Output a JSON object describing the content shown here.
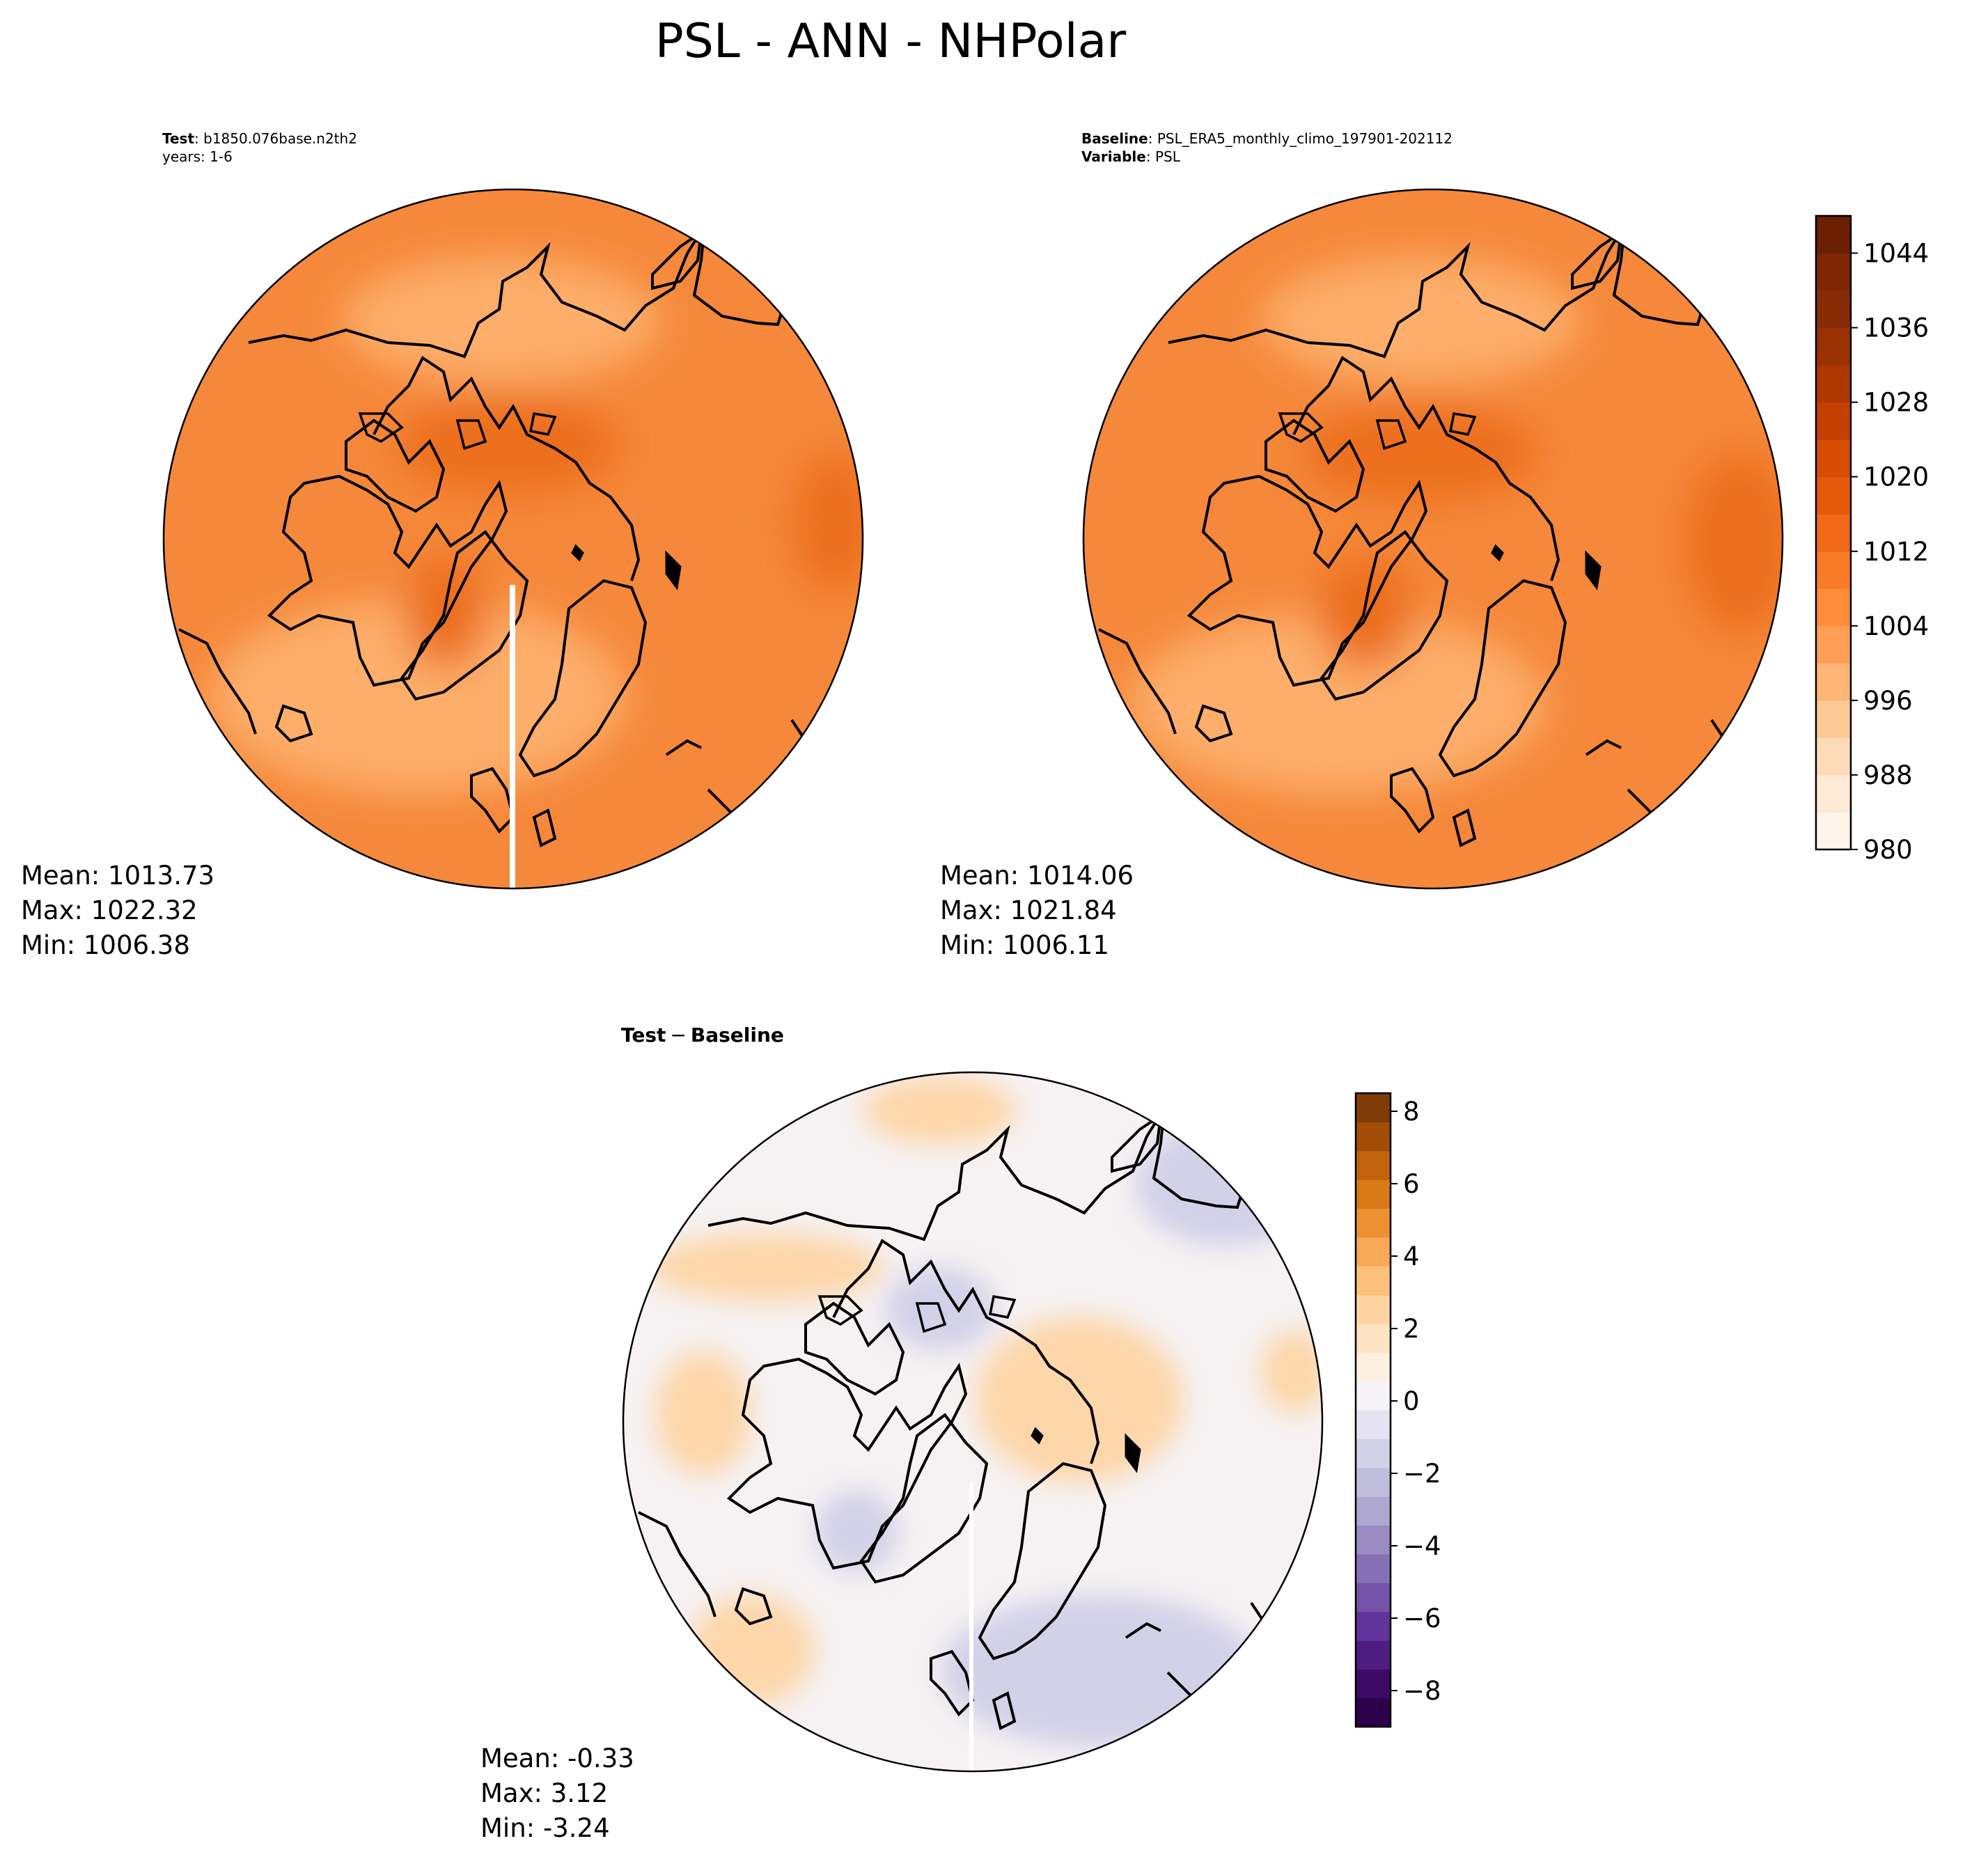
{
  "figure": {
    "title": "PSL - ANN - NHPolar"
  },
  "chart_data": [
    {
      "type": "heatmap",
      "projection": "north-polar-stereographic",
      "panel": "test",
      "label_name": "Test",
      "label_value": "b1850.076base.n2th2",
      "label_line2": "years: 1-6",
      "stats": {
        "mean": "Mean: 1013.73",
        "max": "Max: 1022.32",
        "min": "Min: 1006.38"
      },
      "colormap": "Oranges",
      "colorbar_shared_with": "baseline"
    },
    {
      "type": "heatmap",
      "projection": "north-polar-stereographic",
      "panel": "baseline",
      "label_name": "Baseline",
      "label_value": "PSL_ERA5_monthly_climo_197901-202112",
      "label2_name": "Variable",
      "label2_value": "PSL",
      "stats": {
        "mean": "Mean: 1014.06",
        "max": "Max: 1021.84",
        "min": "Min: 1006.11"
      },
      "colormap": "Oranges",
      "colorbar": {
        "range": [
          980,
          1048
        ],
        "ticks": [
          "1044",
          "1036",
          "1028",
          "1020",
          "1012",
          "1004",
          "996",
          "988",
          "980"
        ],
        "tick_values": [
          1044,
          1036,
          1028,
          1020,
          1012,
          1004,
          996,
          988,
          980
        ],
        "levels": 17,
        "colors": [
          "#fff5eb",
          "#fee9d4",
          "#fddbb8",
          "#fdc997",
          "#fdb576",
          "#fd9f56",
          "#fd8c3b",
          "#f97b28",
          "#f06a18",
          "#e5590a",
          "#d64d04",
          "#c44002",
          "#ae3702",
          "#9a3103",
          "#872b04",
          "#7f2704",
          "#6b1f03"
        ]
      }
    },
    {
      "type": "heatmap",
      "projection": "north-polar-stereographic",
      "panel": "difference",
      "title_left": "Test",
      "title_op": "−",
      "title_right": "Baseline",
      "stats": {
        "mean": "Mean: -0.33",
        "max": "Max:  3.12",
        "min": "Min: -3.24"
      },
      "colormap": "PuOr_r",
      "colorbar": {
        "range": [
          -9,
          8.5
        ],
        "ticks": [
          "8",
          "6",
          "4",
          "2",
          "0",
          "−2",
          "−4",
          "−6",
          "−8"
        ],
        "tick_values": [
          8,
          6,
          4,
          2,
          0,
          -2,
          -4,
          -6,
          -8
        ],
        "levels": 22,
        "colors": [
          "#2d004b",
          "#3d0a66",
          "#4e1d82",
          "#60349b",
          "#7352a8",
          "#8670b5",
          "#9a8bc3",
          "#aea7d0",
          "#c1bedd",
          "#d3d1e8",
          "#e5e3f1",
          "#f5f3f7",
          "#fdf0e0",
          "#fde3c2",
          "#fdd4a1",
          "#fdc17d",
          "#f7a957",
          "#ec9130",
          "#d97a17",
          "#c0630c",
          "#a14d07",
          "#7f3b08"
        ]
      }
    }
  ],
  "colors": {
    "test_base": "#f5883a",
    "test_light": "#fdae6b",
    "test_dark": "#ec6e1f",
    "base_base": "#f5883a",
    "diff_base": "#f6f2f3",
    "diff_warm": "#fdd7aa",
    "diff_cool": "#d3d1e8",
    "coast": "#000000"
  }
}
